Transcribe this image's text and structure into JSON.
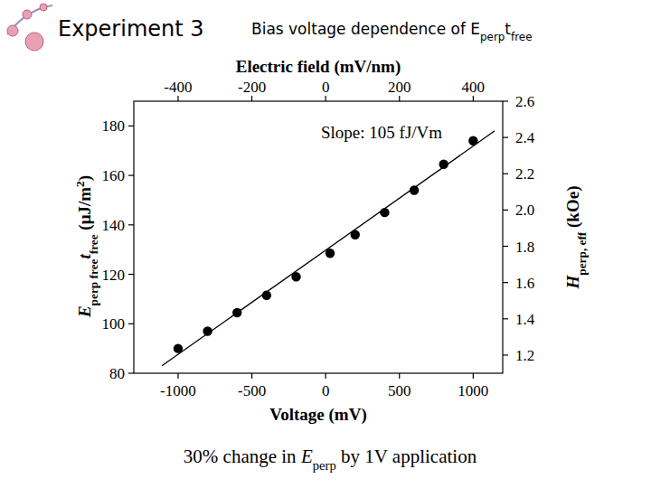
{
  "chart_data": {
    "type": "scatter",
    "page_title": "Experiment 3",
    "title": [
      {
        "text": "Bias voltage dependence of "
      },
      {
        "text": "E"
      },
      {
        "text": "perp",
        "sub": true
      },
      {
        "text": "t"
      },
      {
        "text": "free",
        "sub": true
      }
    ],
    "x_label": "Voltage (mV)",
    "x2_label": "Electric field (mV/nm)",
    "y_label": [
      {
        "text": "E",
        "italic": true
      },
      {
        "text": "perp free",
        "sub": true
      },
      {
        "text": "t",
        "italic": true
      },
      {
        "text": "free",
        "sub": true
      },
      {
        "text": " (μJ/m"
      },
      {
        "text": "2",
        "sup": true
      },
      {
        "text": ")"
      }
    ],
    "y2_label": [
      {
        "text": "H",
        "italic": true
      },
      {
        "text": "perp, eff",
        "sub": true
      },
      {
        "text": " (kOe)"
      }
    ],
    "annotation": "Slope: 105 fJ/Vm",
    "caption": [
      {
        "text": "30% change in "
      },
      {
        "text": "E",
        "italic": true
      },
      {
        "text": "perp",
        "sub": true
      },
      {
        "text": " by 1V application"
      }
    ],
    "xlim": [
      -1300,
      1200
    ],
    "xticks": [
      -1000,
      -500,
      0,
      500,
      1000
    ],
    "x2lim": [
      -520,
      480
    ],
    "x2ticks": [
      -400,
      -200,
      0,
      200,
      400
    ],
    "ylim": [
      80,
      190
    ],
    "yticks": [
      80,
      100,
      120,
      140,
      160,
      180
    ],
    "y2lim": [
      1.1,
      2.6
    ],
    "y2ticks": [
      1.2,
      1.4,
      1.6,
      1.8,
      {
        "value": 2,
        "label": "2.0"
      },
      2.2,
      2.4,
      2.6
    ],
    "grid": false,
    "series": [
      {
        "type": "scatter",
        "color": "#000000",
        "marker": "circle",
        "x": [
          -1000,
          -800,
          -600,
          -400,
          -200,
          30,
          200,
          400,
          600,
          800,
          1000
        ],
        "values": [
          90,
          97,
          104.5,
          111.5,
          119,
          128.5,
          136,
          145,
          154,
          164.5,
          174
        ]
      },
      {
        "type": "line",
        "color": "#000000",
        "line_style": "solid",
        "x": [
          -1110,
          1146
        ],
        "values": [
          83,
          178
        ]
      }
    ]
  }
}
